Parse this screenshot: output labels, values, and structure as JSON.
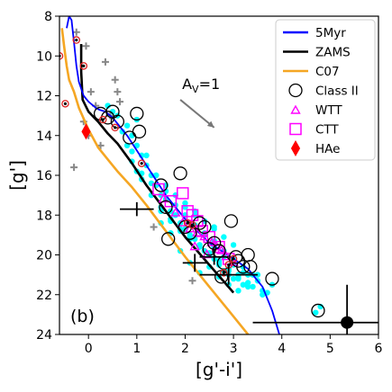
{
  "chart_data": {
    "type": "scatter",
    "panel_label": "(b)",
    "xlabel": "[g'-i']",
    "ylabel": "[g']",
    "xlim": [
      -0.6,
      6
    ],
    "ylim": [
      24,
      8
    ],
    "y_inverted": true,
    "xticks": [
      0,
      1,
      2,
      3,
      4,
      5,
      6
    ],
    "yticks": [
      8,
      10,
      12,
      14,
      16,
      18,
      20,
      22,
      24
    ],
    "legend_position": "top-right",
    "legend": [
      {
        "label": "5Myr",
        "marker": "line",
        "color": "#0000ff"
      },
      {
        "label": "ZAMS",
        "marker": "line",
        "color": "#000000"
      },
      {
        "label": "C07",
        "marker": "line",
        "color": "#f5a623"
      },
      {
        "label": "Class II",
        "marker": "open-circle",
        "color": "#000000"
      },
      {
        "label": "WTT",
        "marker": "open-triangle",
        "color": "#ff00ff"
      },
      {
        "label": "CTT",
        "marker": "open-square",
        "color": "#ff00ff"
      },
      {
        "label": "HAe",
        "marker": "diamond",
        "color": "#ff0000"
      }
    ],
    "extinction_vector": {
      "label": "A_V=1",
      "from": [
        1.9,
        12.2
      ],
      "to": [
        2.6,
        13.6
      ]
    },
    "colors": {
      "field": "#00ffff",
      "gray": "#888888",
      "isochrone": "#0000ff",
      "zams": "#000000",
      "c07": "#f5a623",
      "wtt": "#ff00ff",
      "ctt": "#ff00ff",
      "hae": "#ff0000",
      "red_ring": "#dd2222"
    },
    "curves": {
      "isochrone_5myr": {
        "x": [
          -0.45,
          -0.4,
          -0.35,
          -0.3,
          -0.25,
          -0.2,
          -0.1,
          0.0,
          0.1,
          0.15,
          0.22,
          0.35,
          0.5,
          0.8,
          1.2,
          1.6,
          2.0,
          2.5,
          3.0,
          3.3,
          3.6,
          3.8,
          3.95
        ],
        "y": [
          8.6,
          8.0,
          8.2,
          9.3,
          10.5,
          11.3,
          12.0,
          12.3,
          12.5,
          12.6,
          12.7,
          12.8,
          13.1,
          14.0,
          15.5,
          17.0,
          18.2,
          19.4,
          20.2,
          20.7,
          21.6,
          22.8,
          24.0
        ]
      },
      "zams": {
        "x": [
          -0.15,
          -0.15,
          -0.12,
          0.0,
          0.2,
          0.4,
          0.6,
          0.9,
          1.2,
          1.6,
          2.0,
          2.5,
          3.0
        ],
        "y": [
          9.4,
          10.8,
          12.2,
          12.8,
          13.3,
          13.9,
          14.4,
          15.4,
          16.5,
          17.8,
          19.1,
          20.5,
          21.9
        ]
      },
      "c07": {
        "x": [
          -0.55,
          -0.5,
          -0.45,
          -0.4,
          -0.3,
          -0.2,
          0.0,
          0.2,
          0.4,
          0.6,
          0.9,
          1.2,
          1.6,
          2.0,
          2.4,
          2.8,
          3.1,
          3.3
        ],
        "y": [
          8.6,
          9.6,
          10.5,
          11.2,
          11.8,
          12.6,
          13.7,
          14.6,
          15.2,
          15.8,
          16.6,
          17.5,
          18.8,
          20.1,
          21.3,
          22.5,
          23.4,
          24.0
        ]
      }
    },
    "series": [
      {
        "name": "",
        "role": "field-stars",
        "marker": "filled-circle",
        "x": [
          0.8,
          0.9,
          1.0,
          1.1,
          1.2,
          1.0,
          0.9,
          1.3,
          1.4,
          1.5,
          1.6,
          1.7,
          1.8,
          1.9,
          2.0,
          2.1,
          2.2,
          2.3,
          2.4,
          2.5,
          2.6,
          2.7,
          2.8,
          2.9,
          3.0,
          3.1,
          3.2,
          3.3,
          3.4,
          3.5,
          3.6,
          1.2,
          1.4,
          1.6,
          1.8,
          2.0,
          2.2,
          2.4,
          2.6,
          2.8,
          3.0,
          3.2,
          3.4,
          1.5,
          1.7,
          1.9,
          2.1,
          2.3,
          2.5,
          2.7,
          2.9,
          3.1,
          3.3,
          1.1,
          1.3,
          1.5,
          1.7,
          1.9,
          2.1,
          2.3,
          2.5,
          2.7,
          2.9,
          3.1,
          0.6,
          0.7,
          0.5,
          0.8,
          1.0,
          2.4,
          2.6,
          2.8,
          3.0,
          3.2,
          2.2,
          2.0,
          1.8,
          1.6,
          1.4,
          2.5,
          2.7,
          2.9,
          3.1,
          3.3,
          3.5,
          3.7,
          1.9,
          2.1,
          2.3,
          2.6,
          2.8,
          3.0,
          0.9,
          1.1,
          1.3,
          0.4,
          3.8,
          3.6,
          4.8,
          4.7,
          2.0,
          2.2,
          2.4,
          2.6,
          1.5,
          1.7
        ],
        "y": [
          13.5,
          14.0,
          14.5,
          15.0,
          15.5,
          13.2,
          14.8,
          16.0,
          16.5,
          17.0,
          17.2,
          17.8,
          18.0,
          18.4,
          18.7,
          19.0,
          19.2,
          19.5,
          19.8,
          20.0,
          20.2,
          20.5,
          20.8,
          21.0,
          21.2,
          21.0,
          21.5,
          21.0,
          21.6,
          21.3,
          21.8,
          15.0,
          16.0,
          16.8,
          17.5,
          18.0,
          18.5,
          18.9,
          19.3,
          19.8,
          20.2,
          20.6,
          21.0,
          17.8,
          18.3,
          18.8,
          19.2,
          19.6,
          20.0,
          20.4,
          20.8,
          21.2,
          21.6,
          16.2,
          17.0,
          17.6,
          18.2,
          18.7,
          19.1,
          19.5,
          19.9,
          20.3,
          20.7,
          21.1,
          13.0,
          13.8,
          12.8,
          14.5,
          15.8,
          19.0,
          19.6,
          20.1,
          20.5,
          20.9,
          17.8,
          17.4,
          17.0,
          16.5,
          16.0,
          20.6,
          21.1,
          21.5,
          21.8,
          21.4,
          21.0,
          21.9,
          19.8,
          20.4,
          20.9,
          18.6,
          19.1,
          19.5,
          15.3,
          15.9,
          16.4,
          12.5,
          21.5,
          22.0,
          22.6,
          22.9,
          17.6,
          18.0,
          18.3,
          18.7,
          18.4,
          18.9
        ]
      },
      {
        "name": "",
        "role": "gray-plus",
        "marker": "plus",
        "x": [
          -0.25,
          -0.05,
          0.35,
          0.55,
          0.65,
          0.05,
          0.15,
          -0.1,
          0.45,
          -0.3,
          0.25,
          0.6,
          1.35,
          2.15,
          0.0
        ],
        "y": [
          8.8,
          9.5,
          10.3,
          11.2,
          12.3,
          11.8,
          12.5,
          13.3,
          13.0,
          15.6,
          14.5,
          11.8,
          18.6,
          21.3,
          14.0
        ]
      },
      {
        "name": "Class II",
        "marker": "open-circle",
        "x": [
          0.25,
          0.4,
          0.5,
          0.6,
          0.85,
          1.0,
          1.05,
          1.5,
          1.6,
          1.9,
          2.0,
          2.3,
          2.4,
          2.6,
          2.7,
          2.8,
          2.95,
          3.05,
          3.2,
          3.3,
          3.35,
          2.1,
          2.5,
          2.75,
          3.1,
          3.8,
          4.75,
          1.65
        ],
        "y": [
          12.9,
          13.1,
          12.8,
          13.3,
          14.1,
          12.9,
          13.8,
          16.5,
          17.6,
          15.9,
          18.6,
          18.4,
          18.6,
          19.4,
          19.8,
          20.4,
          18.3,
          20.1,
          20.6,
          20.0,
          20.6,
          18.9,
          19.7,
          21.1,
          20.3,
          21.2,
          22.8,
          19.2
        ]
      },
      {
        "name": "WTT",
        "marker": "open-triangle",
        "x": [
          1.55,
          1.8,
          1.95,
          2.1,
          2.25,
          2.4,
          2.55,
          2.65,
          2.85,
          3.0,
          2.2,
          2.45,
          2.75
        ],
        "y": [
          17.2,
          17.9,
          18.4,
          18.7,
          18.9,
          19.1,
          19.4,
          19.6,
          20.1,
          20.4,
          19.6,
          20.0,
          19.8
        ]
      },
      {
        "name": "CTT",
        "marker": "open-square",
        "x": [
          1.45,
          1.7,
          1.95,
          2.05,
          2.25,
          2.5,
          2.7,
          2.9,
          2.15,
          2.35
        ],
        "y": [
          16.7,
          17.3,
          16.9,
          17.8,
          18.3,
          19.1,
          19.6,
          20.2,
          18.0,
          18.8
        ]
      },
      {
        "name": "HAe",
        "marker": "diamond",
        "x": [
          -0.05
        ],
        "y": [
          13.8
        ]
      },
      {
        "name": "",
        "role": "red-ring-dots",
        "marker": "ring-dot",
        "x": [
          -0.6,
          -0.48,
          -0.25,
          -0.1,
          0.3,
          0.55,
          1.1,
          2.15,
          2.8,
          2.9,
          3.0,
          2.05
        ],
        "y": [
          10.0,
          12.4,
          9.2,
          10.5,
          13.2,
          13.6,
          15.4,
          18.5,
          20.9,
          20.5,
          20.2,
          18.4
        ]
      }
    ],
    "error_bars": [
      {
        "x": 1.0,
        "y": 17.7,
        "xerr": 0.35,
        "yerr": 0.35
      },
      {
        "x": 2.6,
        "y": 20.1,
        "xerr": 0.3,
        "yerr": 0.4
      },
      {
        "x": 2.9,
        "y": 21.0,
        "xerr": 0.6,
        "yerr": 0.5
      },
      {
        "x": 2.2,
        "y": 20.4,
        "xerr": 0.25,
        "yerr": 0.45
      },
      {
        "x": 5.35,
        "y": 23.4,
        "xerr": 1.95,
        "yerr": 1.9
      }
    ]
  }
}
